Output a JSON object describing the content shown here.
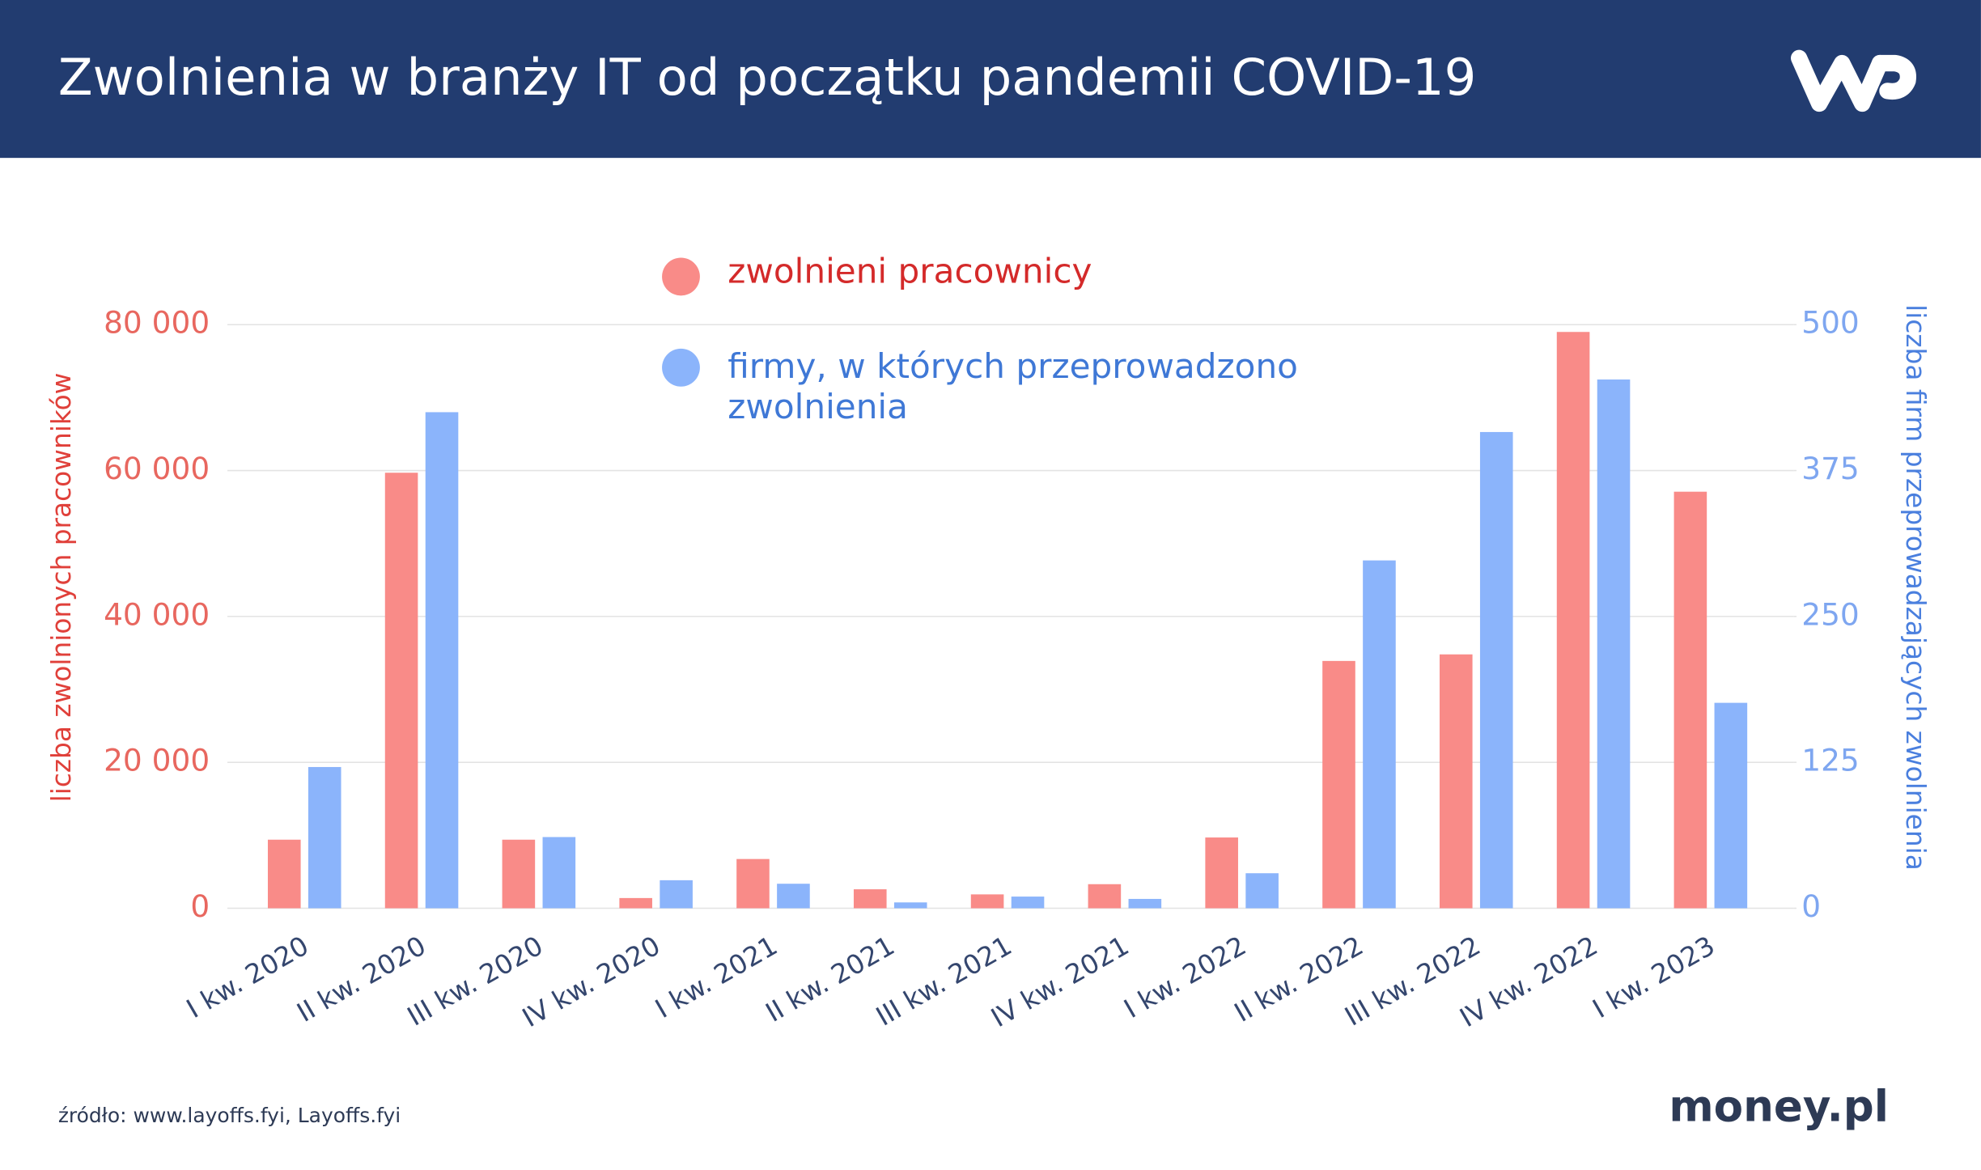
{
  "header": {
    "title": "Zwolnienia w branży IT od początku pandemii COVID-19"
  },
  "chart_data": {
    "type": "bar",
    "categories": [
      "I kw. 2020",
      "II kw. 2020",
      "III kw. 2020",
      "IV kw. 2020",
      "I kw. 2021",
      "II kw. 2021",
      "III kw. 2021",
      "IV kw. 2021",
      "I kw. 2022",
      "II kw. 2022",
      "III kw. 2022",
      "IV kw. 2022",
      "I kw. 2023"
    ],
    "series": [
      {
        "name": "zwolnieni pracownicy",
        "color": "#f98b88",
        "values": [
          9400,
          59700,
          9400,
          1400,
          6750,
          2600,
          1900,
          3300,
          9700,
          33900,
          34800,
          79000,
          57100
        ]
      },
      {
        "name": "firmy, w których przeprowadzono zwolnienia",
        "color": "#8bb4fb",
        "axis": "y2",
        "values": [
          121,
          425,
          61,
          24,
          21,
          5,
          10,
          8,
          30,
          298,
          408,
          453,
          176
        ]
      }
    ],
    "ylabel": "liczba zwolnionych pracowników",
    "y2label": "liczba firm przeprowadzających zwolnienia",
    "ylim": [
      0,
      80000
    ],
    "yticks": [
      0,
      {
        "value": 20000,
        "label": "20 000"
      },
      {
        "value": 40000,
        "label": "40 000"
      },
      {
        "value": 60000,
        "label": "60 000"
      },
      {
        "value": 80000,
        "label": "80 000"
      }
    ],
    "y2lim": [
      0,
      500
    ],
    "y2ticks": [
      0,
      125,
      250,
      375,
      500
    ],
    "grid": true
  },
  "footer": {
    "source": "źródło: www.layoffs.fyi, Layoffs.fyi",
    "brand": "money.pl"
  }
}
